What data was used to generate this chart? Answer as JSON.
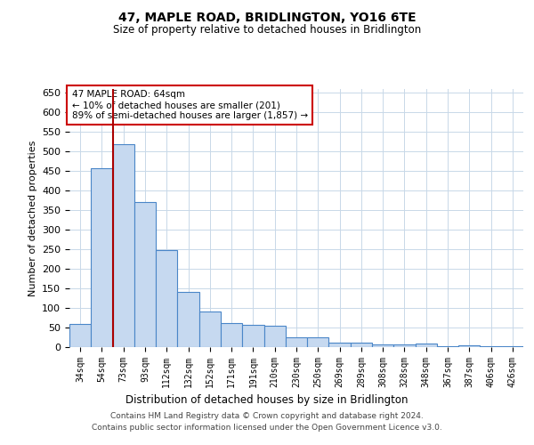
{
  "title": "47, MAPLE ROAD, BRIDLINGTON, YO16 6TE",
  "subtitle": "Size of property relative to detached houses in Bridlington",
  "xlabel": "Distribution of detached houses by size in Bridlington",
  "ylabel": "Number of detached properties",
  "categories": [
    "34sqm",
    "54sqm",
    "73sqm",
    "93sqm",
    "112sqm",
    "132sqm",
    "152sqm",
    "171sqm",
    "191sqm",
    "210sqm",
    "230sqm",
    "250sqm",
    "269sqm",
    "289sqm",
    "308sqm",
    "328sqm",
    "348sqm",
    "367sqm",
    "387sqm",
    "406sqm",
    "426sqm"
  ],
  "values": [
    60,
    457,
    520,
    370,
    248,
    140,
    92,
    62,
    57,
    55,
    25,
    25,
    12,
    12,
    7,
    7,
    10,
    3,
    5,
    3,
    3
  ],
  "bar_color": "#c6d9f0",
  "bar_edge_color": "#4a86c8",
  "background_color": "#ffffff",
  "grid_color": "#c8d8e8",
  "vline_x": 1.5,
  "vline_color": "#aa0000",
  "annotation_text": "47 MAPLE ROAD: 64sqm\n← 10% of detached houses are smaller (201)\n89% of semi-detached houses are larger (1,857) →",
  "annotation_box_color": "#ffffff",
  "annotation_box_edge": "#cc0000",
  "footer_line1": "Contains HM Land Registry data © Crown copyright and database right 2024.",
  "footer_line2": "Contains public sector information licensed under the Open Government Licence v3.0.",
  "ylim": [
    0,
    660
  ],
  "yticks": [
    0,
    50,
    100,
    150,
    200,
    250,
    300,
    350,
    400,
    450,
    500,
    550,
    600,
    650
  ]
}
